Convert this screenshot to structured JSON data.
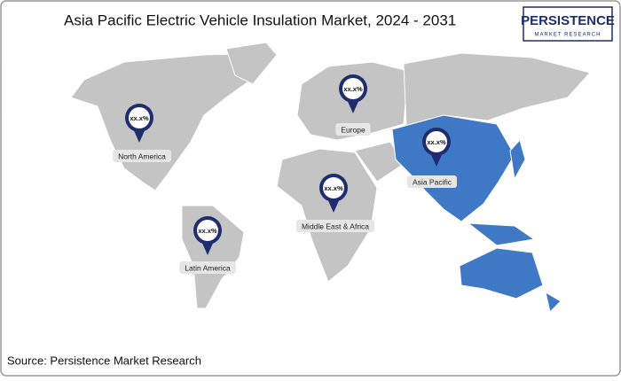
{
  "title": "Asia Pacific Electric Vehicle Insulation Market,  2024 - 2031",
  "logo": {
    "name": "PERSISTENCE",
    "tagline": "MARKET RESEARCH"
  },
  "regions": [
    {
      "name": "North America",
      "pin": "xx.x%"
    },
    {
      "name": "Europe",
      "pin": "xx.x%"
    },
    {
      "name": "Asia Pacific",
      "pin": "xx.x%"
    },
    {
      "name": "Middle East & Africa",
      "pin": "xx.x%"
    },
    {
      "name": "Latin America",
      "pin": "xx.x%"
    }
  ],
  "source": "Source: Persistence Market Research"
}
